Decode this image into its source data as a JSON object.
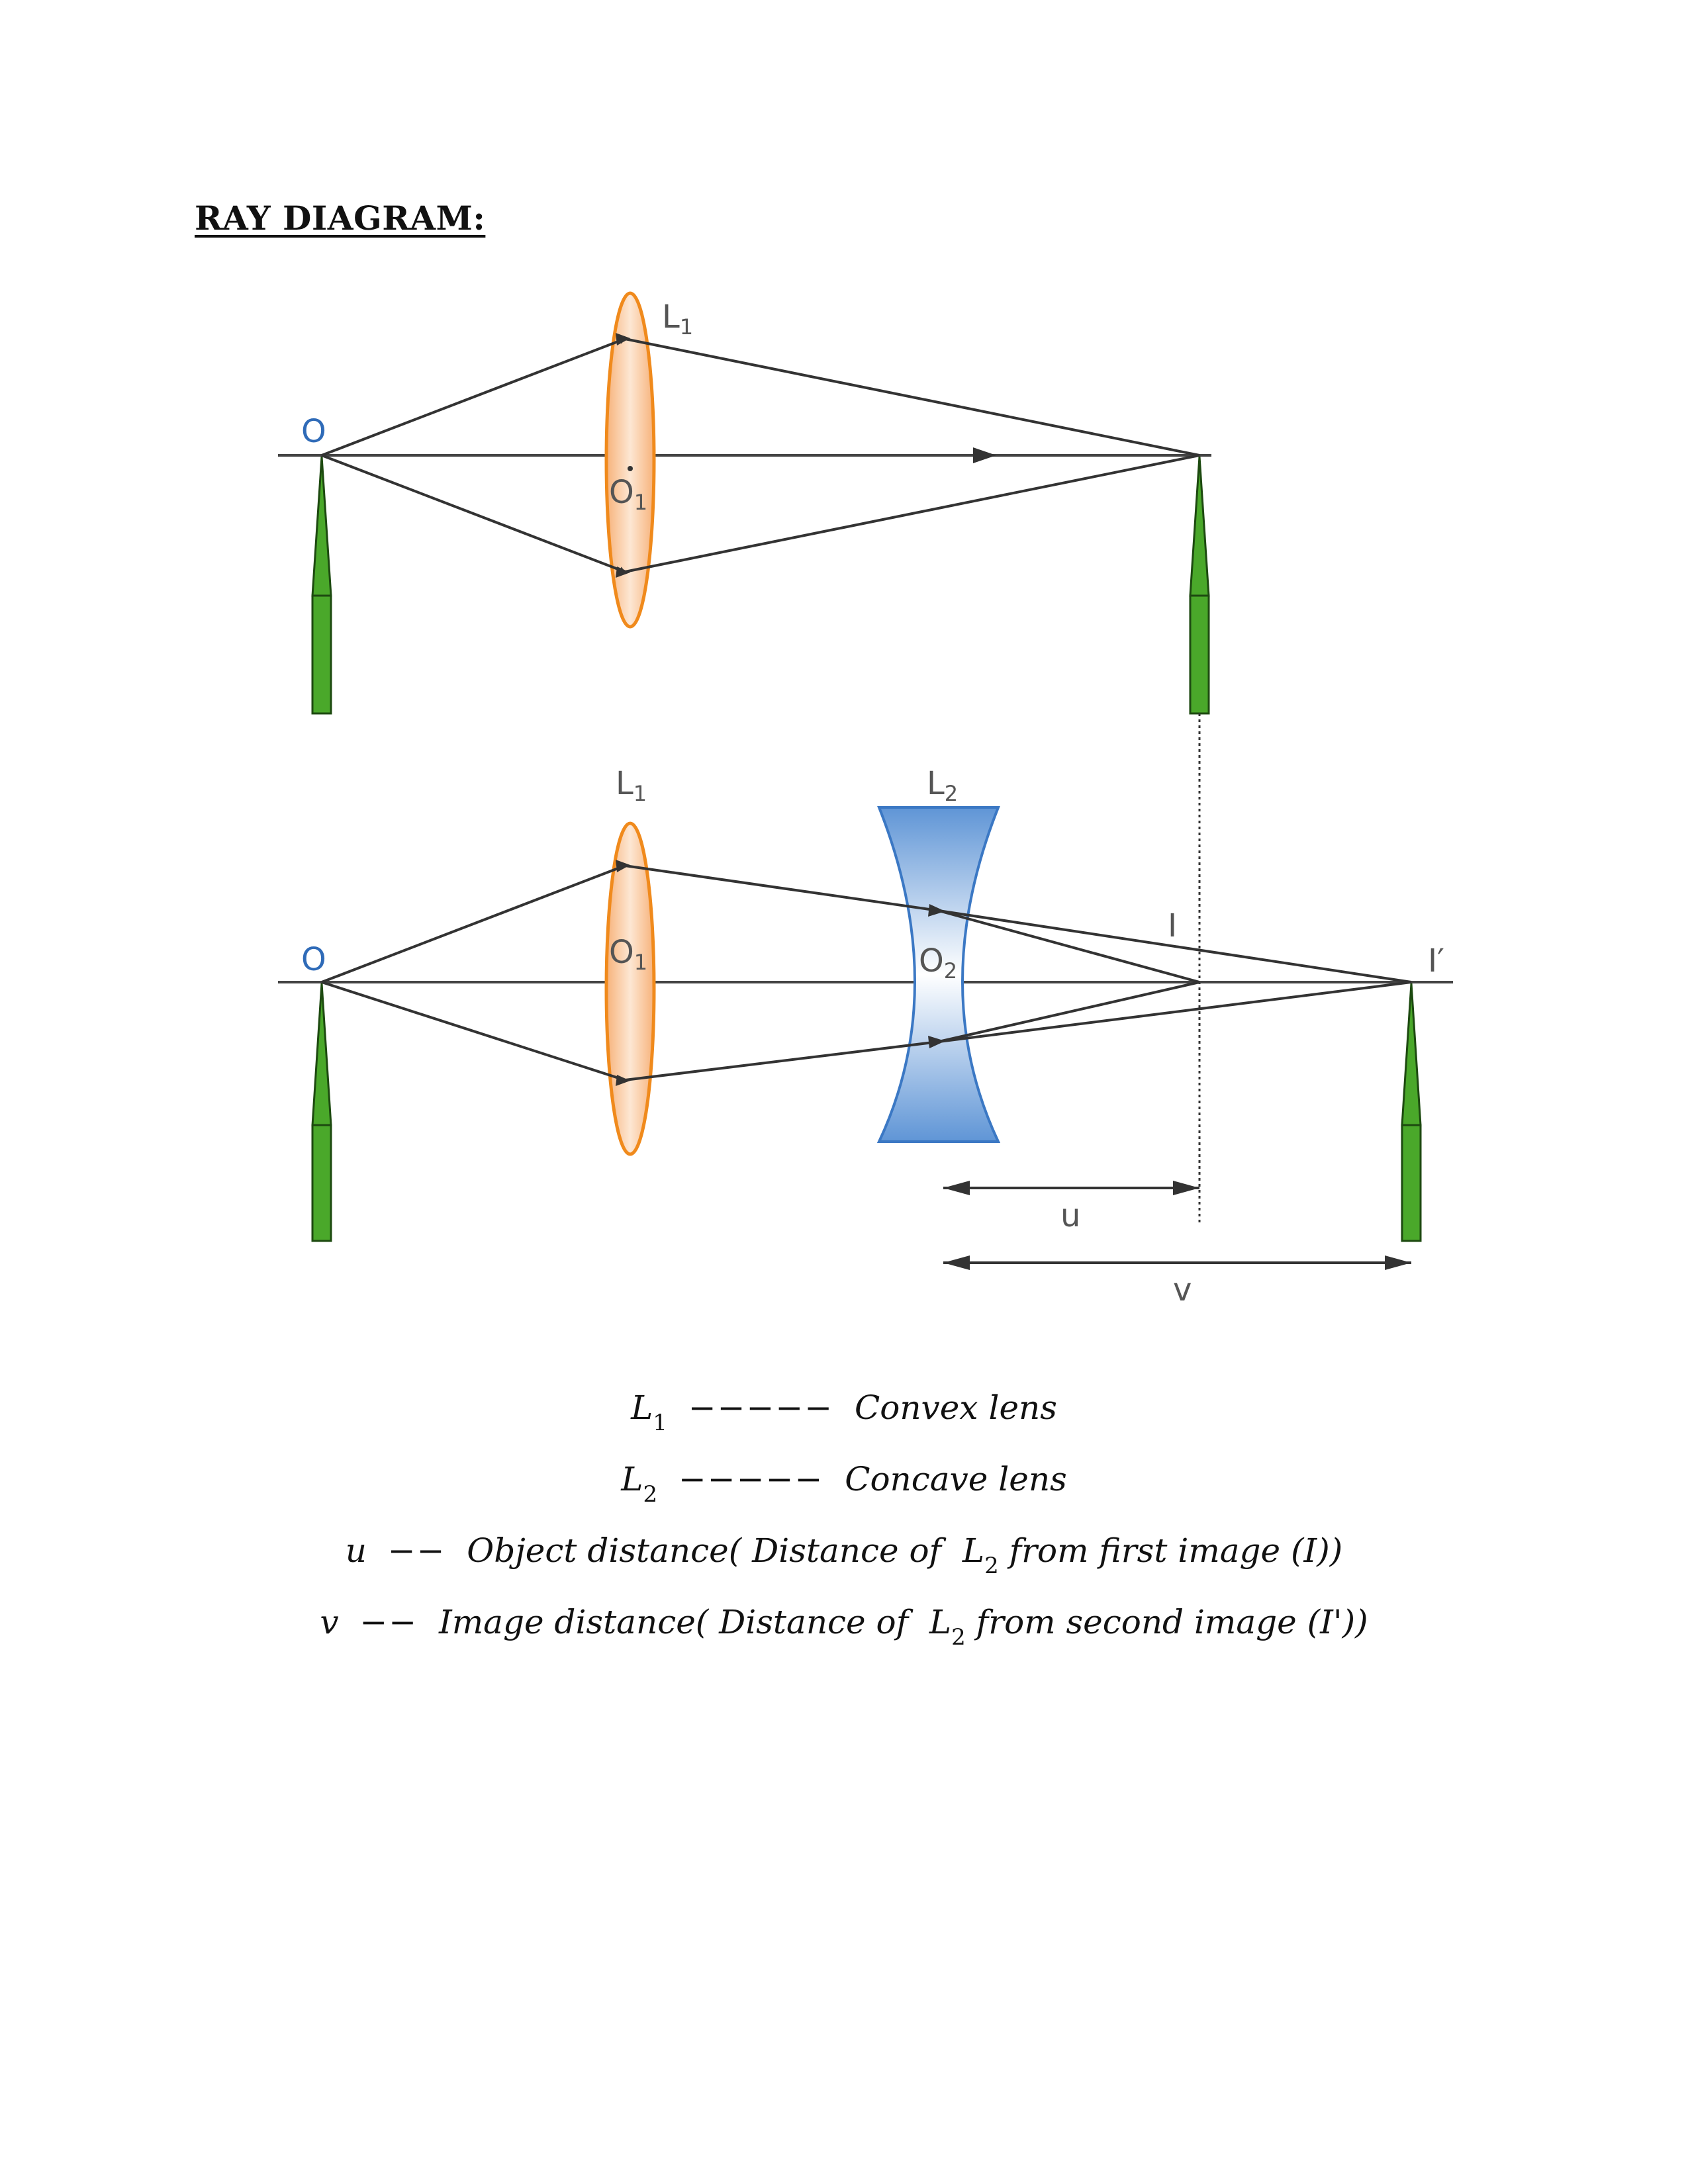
{
  "heading": "RAY DIAGRAM:",
  "diagram": {
    "top_setup": {
      "object_label": "O",
      "lens_label": "L",
      "lens_sub": "1",
      "center_label": "O",
      "center_sub": "1"
    },
    "bottom_setup": {
      "object_label": "O",
      "lens1_label": "L",
      "lens1_sub": "1",
      "lens1_center_label": "O",
      "lens1_center_sub": "1",
      "lens2_label": "L",
      "lens2_sub": "2",
      "lens2_center_label": "O",
      "lens2_center_sub": "2",
      "first_image_label": "I",
      "second_image_label": "I′",
      "u_label": "u",
      "v_label": "v"
    },
    "colors": {
      "convex_lens_fill": "#f9c494",
      "convex_lens_stroke": "#f08a1c",
      "concave_lens_fill": "#7aa7dc",
      "concave_lens_stroke": "#3b78c4",
      "object_fill": "#4aa82a",
      "label_blue": "#2f6bb8"
    }
  },
  "legend": [
    {
      "symbol": "L",
      "sub": "1",
      "dashes": "−−−−−",
      "text": "Convex lens"
    },
    {
      "symbol": "L",
      "sub": "2",
      "dashes": "−−−−−",
      "text": "Concave lens"
    },
    {
      "symbol": "u",
      "dashes": "−−",
      "text_before": "Object distance( Distance of",
      "lens": "L",
      "lens_sub": "2",
      "text_after": "from first image (I))"
    },
    {
      "symbol": "v",
      "dashes": "−−",
      "text_before": "Image distance( Distance of",
      "lens": "L",
      "lens_sub": "2",
      "text_after": "from second image (I'))"
    }
  ]
}
